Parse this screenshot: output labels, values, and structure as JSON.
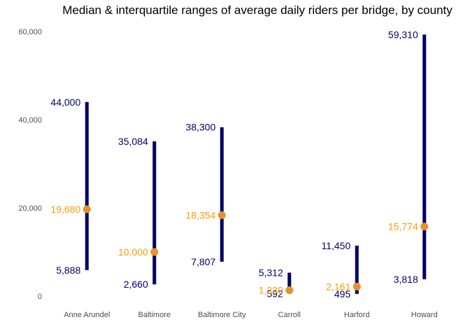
{
  "chart_data": {
    "type": "range",
    "title": "Median & interquartile ranges of average daily riders per bridge, by county",
    "xlabel": "",
    "ylabel": "",
    "ylim": [
      0,
      60000
    ],
    "y_ticks": [
      {
        "value": 0,
        "label": "0"
      },
      {
        "value": 20000,
        "label": "20,000"
      },
      {
        "value": 40000,
        "label": "40,000"
      },
      {
        "value": 60000,
        "label": "60,000"
      }
    ],
    "grid": false,
    "categories": [
      "Anne Arundel",
      "Baltimore",
      "Baltimore City",
      "Carroll",
      "Harford",
      "Howard"
    ],
    "low": [
      5888,
      2660,
      7807,
      592,
      495,
      3818
    ],
    "median": [
      19680,
      10000,
      18354,
      1330,
      2161,
      15774
    ],
    "high": [
      44000,
      35084,
      38300,
      5312,
      11450,
      59310
    ],
    "low_labels": [
      "5,888",
      "2,660",
      "7,807",
      "592",
      "495",
      "3,818"
    ],
    "median_labels": [
      "19,680",
      "10,000",
      "18,354",
      "1,330",
      "2,161",
      "15,774"
    ],
    "high_labels": [
      "44,000",
      "35,084",
      "38,300",
      "5,312",
      "11,450",
      "59,310"
    ],
    "colors": {
      "range": "#000066",
      "median": "#e8922a",
      "median_label": "#ff9900"
    }
  }
}
